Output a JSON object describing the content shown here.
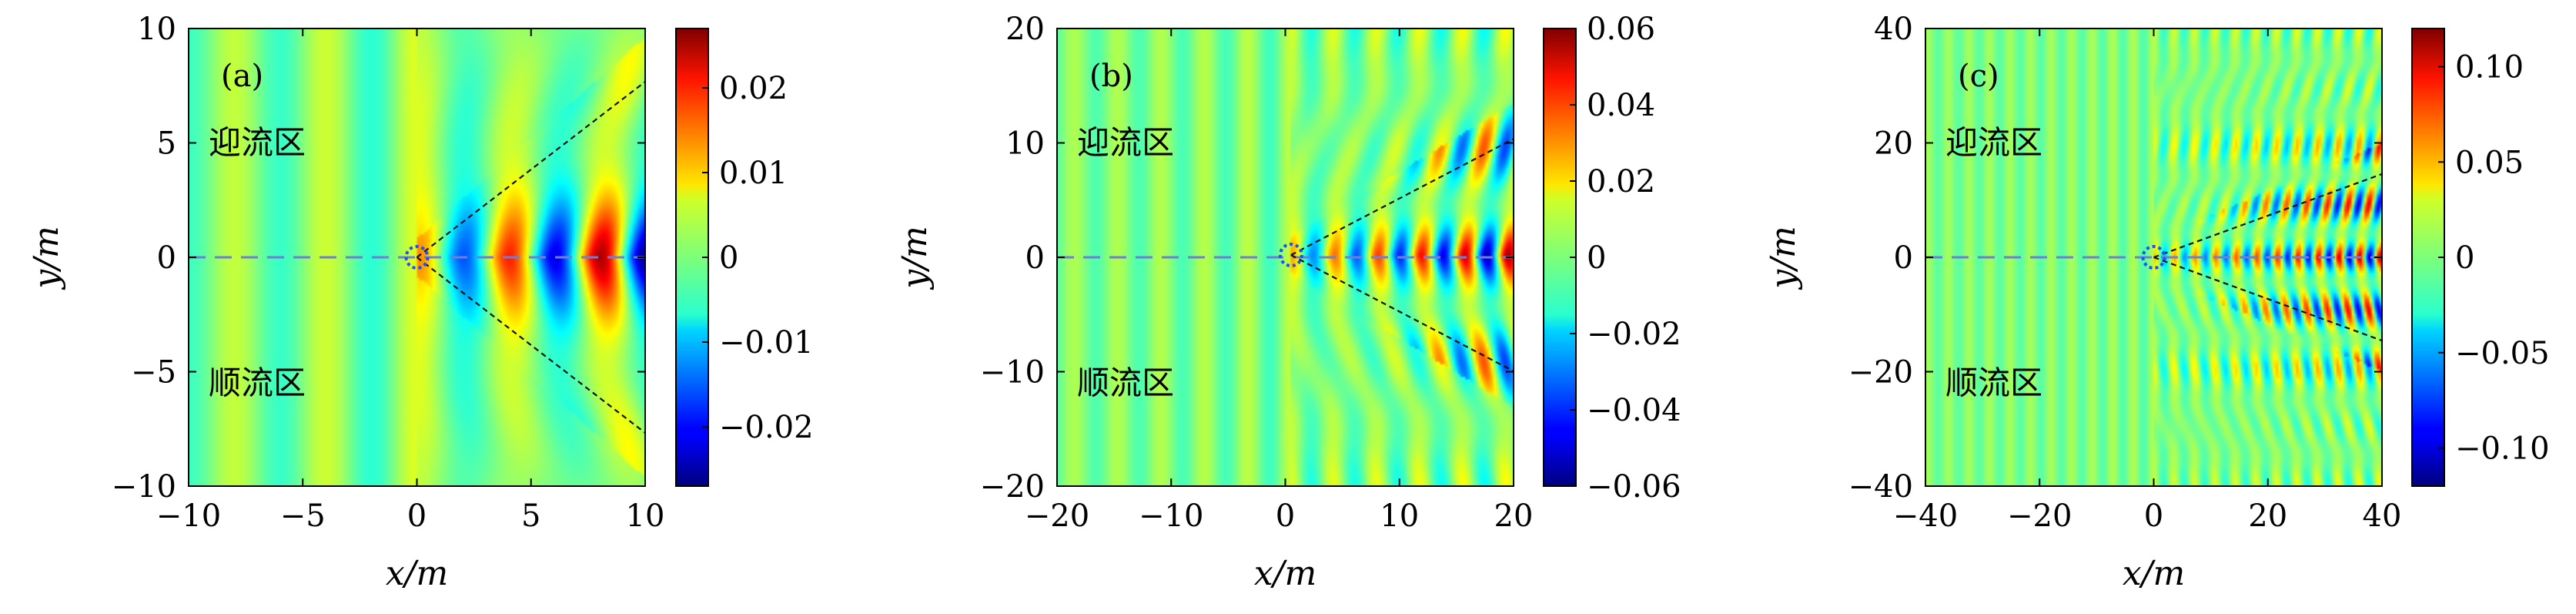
{
  "figure": {
    "description_labels": {
      "upstream_region": "迎流区",
      "downstream_region": "顺流区"
    }
  },
  "chart_data": [
    {
      "type": "heatmap",
      "panel_label": "(a)",
      "xlabel": "x/m",
      "ylabel": "y/m",
      "xlim": [
        -10,
        10
      ],
      "ylim": [
        -10,
        10
      ],
      "xticks": [
        -10,
        -5,
        0,
        5,
        10
      ],
      "xtick_labels": [
        "−10",
        "−5",
        "0",
        "5",
        "10"
      ],
      "yticks": [
        -10,
        -5,
        0,
        5,
        10
      ],
      "ytick_labels": [
        "−10",
        "−5",
        "0",
        "5",
        "10"
      ],
      "colorbar": {
        "range": [
          -0.027,
          0.027
        ],
        "ticks": [
          0.02,
          0.01,
          0,
          -0.01,
          -0.02
        ],
        "tick_labels": [
          "0.02",
          "0.01",
          "0",
          "−0.01",
          "−0.02"
        ]
      },
      "wavelength": 4.0,
      "amp_far": 0.005,
      "amp_near": 0.025,
      "kelvin_half_angle_deg": 37.5,
      "source_point": [
        0,
        0
      ],
      "annotations": [
        {
          "text": "迎流区",
          "x": -7.0,
          "y": 5.0
        },
        {
          "text": "顺流区",
          "x": -7.0,
          "y": -5.5
        }
      ]
    },
    {
      "type": "heatmap",
      "panel_label": "(b)",
      "xlabel": "x/m",
      "ylabel": "y/m",
      "xlim": [
        -20,
        20
      ],
      "ylim": [
        -20,
        20
      ],
      "xticks": [
        -20,
        -10,
        0,
        10,
        20
      ],
      "xtick_labels": [
        "−20",
        "−10",
        "0",
        "10",
        "20"
      ],
      "yticks": [
        -20,
        -10,
        0,
        10,
        20
      ],
      "ytick_labels": [
        "−20",
        "−10",
        "0",
        "10",
        "20"
      ],
      "colorbar": {
        "range": [
          -0.06,
          0.06
        ],
        "ticks": [
          0.06,
          0.04,
          0.02,
          0,
          -0.02,
          -0.04,
          -0.06
        ],
        "tick_labels": [
          "0.06",
          "0.04",
          "0.02",
          "0",
          "−0.02",
          "−0.04",
          "−0.06"
        ]
      },
      "wavelength": 3.8,
      "amp_far": 0.008,
      "amp_near": 0.055,
      "kelvin_half_angle_deg": 27.5,
      "source_point": [
        0.5,
        0.2
      ],
      "annotations": [
        {
          "text": "迎流区",
          "x": -14.0,
          "y": 10.0
        },
        {
          "text": "顺流区",
          "x": -14.0,
          "y": -11.0
        }
      ]
    },
    {
      "type": "heatmap",
      "panel_label": "(c)",
      "xlabel": "x/m",
      "ylabel": "y/m",
      "xlim": [
        -40,
        40
      ],
      "ylim": [
        -40,
        40
      ],
      "xticks": [
        -40,
        -20,
        0,
        20,
        40
      ],
      "xtick_labels": [
        "−40",
        "−20",
        "0",
        "20",
        "40"
      ],
      "yticks": [
        -40,
        -20,
        0,
        20,
        40
      ],
      "ytick_labels": [
        "−40",
        "−20",
        "0",
        "20",
        "40"
      ],
      "colorbar": {
        "range": [
          -0.12,
          0.12
        ],
        "ticks": [
          0.1,
          0.05,
          0,
          -0.05,
          -0.1
        ],
        "tick_labels": [
          "0.10",
          "0.05",
          "0",
          "−0.05",
          "−0.10"
        ]
      },
      "wavelength": 3.6,
      "amp_far": 0.012,
      "amp_near": 0.11,
      "kelvin_half_angle_deg": 20.0,
      "source_point": [
        0,
        0
      ],
      "annotations": [
        {
          "text": "迎流区",
          "x": -28.0,
          "y": 20.0
        },
        {
          "text": "顺流区",
          "x": -28.0,
          "y": -22.0
        }
      ]
    }
  ]
}
